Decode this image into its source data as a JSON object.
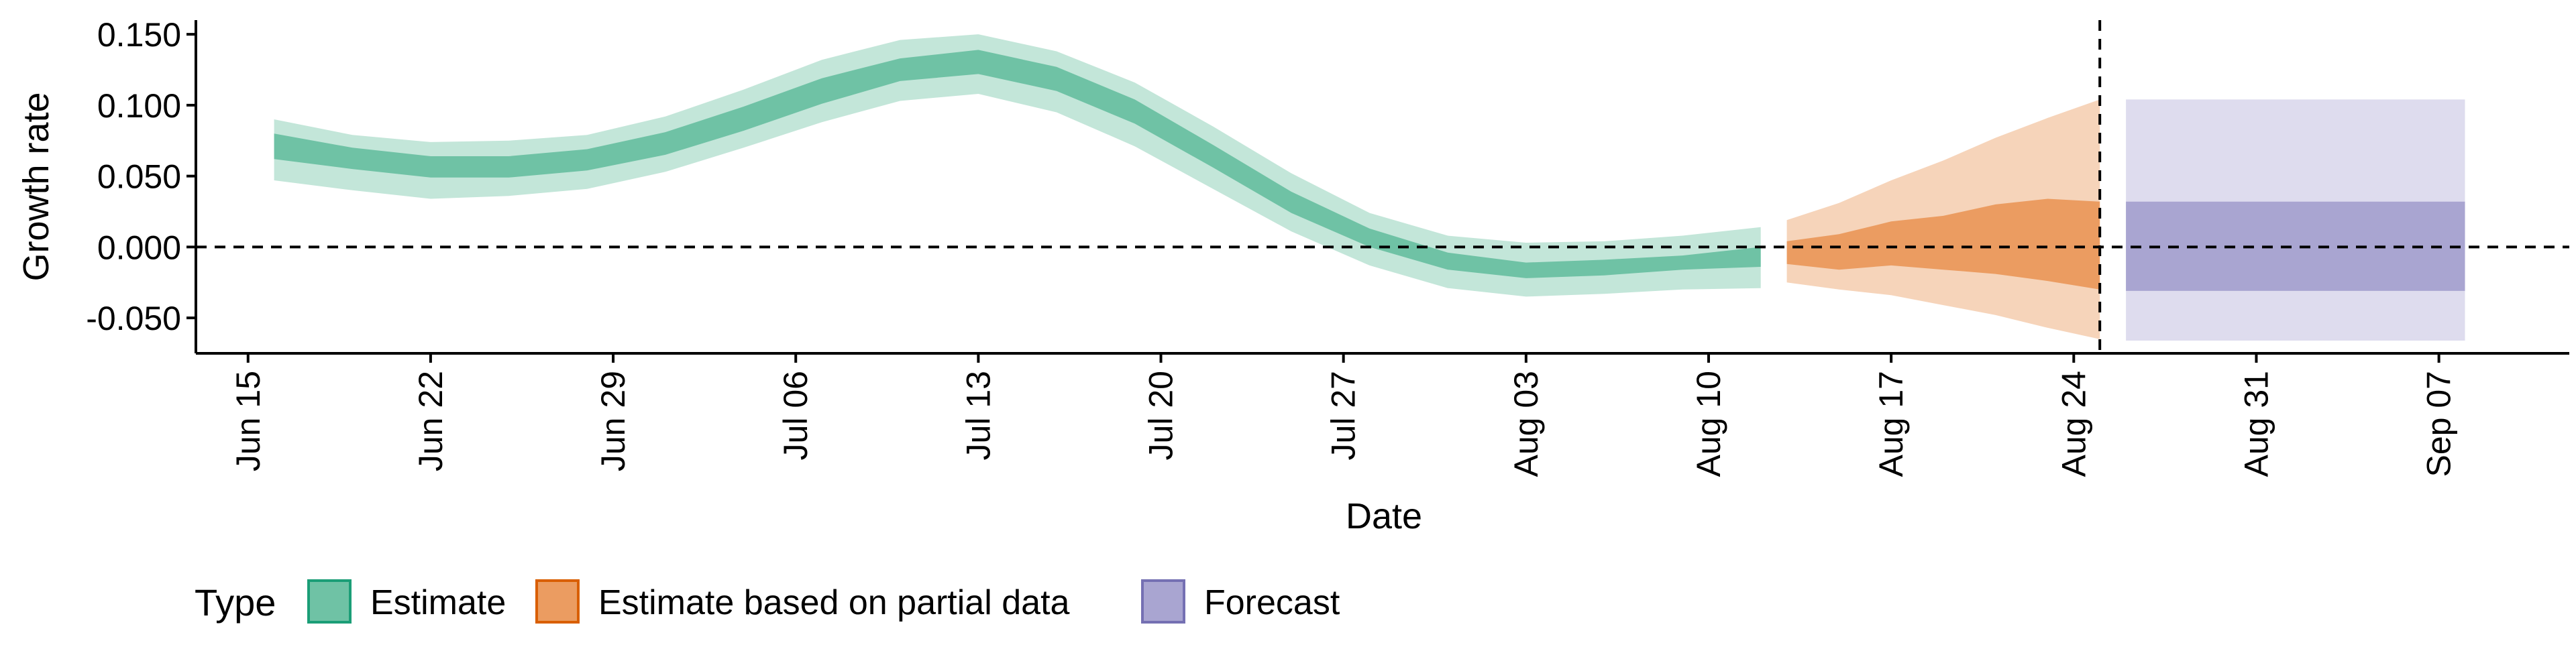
{
  "chart_data": {
    "type": "area",
    "title": "",
    "xlabel": "Date",
    "ylabel": "Growth rate",
    "x_start": "2020-06-13",
    "x_end": "2020-09-12",
    "ylim": [
      -0.075,
      0.16
    ],
    "x_ticks": [
      {
        "date": "2020-06-15",
        "label": "Jun 15"
      },
      {
        "date": "2020-06-22",
        "label": "Jun 22"
      },
      {
        "date": "2020-06-29",
        "label": "Jun 29"
      },
      {
        "date": "2020-07-06",
        "label": "Jul 06"
      },
      {
        "date": "2020-07-13",
        "label": "Jul 13"
      },
      {
        "date": "2020-07-20",
        "label": "Jul 20"
      },
      {
        "date": "2020-07-27",
        "label": "Jul 27"
      },
      {
        "date": "2020-08-03",
        "label": "Aug 03"
      },
      {
        "date": "2020-08-10",
        "label": "Aug 10"
      },
      {
        "date": "2020-08-17",
        "label": "Aug 17"
      },
      {
        "date": "2020-08-24",
        "label": "Aug 24"
      },
      {
        "date": "2020-08-31",
        "label": "Aug 31"
      },
      {
        "date": "2020-09-07",
        "label": "Sep 07"
      }
    ],
    "y_ticks": [
      {
        "value": -0.05,
        "label": "-0.050"
      },
      {
        "value": 0.0,
        "label": "0.000"
      },
      {
        "value": 0.05,
        "label": "0.050"
      },
      {
        "value": 0.1,
        "label": "0.100"
      },
      {
        "value": 0.15,
        "label": "0.150"
      }
    ],
    "reference_lines": {
      "hline_y": 0.0,
      "vline_date": "2020-08-25"
    },
    "grid": false,
    "legend": {
      "title": "Type",
      "position": "bottom-left",
      "entries": [
        {
          "label": "Estimate",
          "fill": "#6FC2A5",
          "stroke": "#1B9E77"
        },
        {
          "label": "Estimate based on partial data",
          "fill": "#EB9C61",
          "stroke": "#D95F02"
        },
        {
          "label": "Forecast",
          "fill": "#A9A5D1",
          "stroke": "#7570B3"
        }
      ]
    },
    "series": [
      {
        "name": "Estimate",
        "dates": [
          "2020-06-16",
          "2020-06-19",
          "2020-06-22",
          "2020-06-25",
          "2020-06-28",
          "2020-07-01",
          "2020-07-04",
          "2020-07-07",
          "2020-07-10",
          "2020-07-13",
          "2020-07-16",
          "2020-07-19",
          "2020-07-22",
          "2020-07-25",
          "2020-07-28",
          "2020-07-31",
          "2020-08-03",
          "2020-08-06",
          "2020-08-09",
          "2020-08-12"
        ],
        "inner_lower": [
          0.062,
          0.055,
          0.049,
          0.049,
          0.054,
          0.065,
          0.082,
          0.101,
          0.117,
          0.122,
          0.11,
          0.087,
          0.056,
          0.024,
          0.0,
          -0.016,
          -0.022,
          -0.02,
          -0.016,
          -0.014
        ],
        "inner_upper": [
          0.08,
          0.07,
          0.064,
          0.064,
          0.069,
          0.081,
          0.099,
          0.119,
          0.133,
          0.139,
          0.127,
          0.104,
          0.072,
          0.039,
          0.013,
          -0.004,
          -0.011,
          -0.009,
          -0.006,
          0.0
        ],
        "outer_lower": [
          0.047,
          0.04,
          0.034,
          0.036,
          0.041,
          0.053,
          0.07,
          0.088,
          0.103,
          0.108,
          0.095,
          0.071,
          0.041,
          0.011,
          -0.013,
          -0.029,
          -0.035,
          -0.033,
          -0.03,
          -0.029
        ],
        "outer_upper": [
          0.09,
          0.079,
          0.074,
          0.075,
          0.079,
          0.092,
          0.111,
          0.132,
          0.146,
          0.15,
          0.138,
          0.116,
          0.085,
          0.052,
          0.024,
          0.008,
          0.003,
          0.004,
          0.008,
          0.014
        ]
      },
      {
        "name": "Estimate based on partial data",
        "dates": [
          "2020-08-13",
          "2020-08-15",
          "2020-08-17",
          "2020-08-19",
          "2020-08-21",
          "2020-08-23",
          "2020-08-25"
        ],
        "inner_lower": [
          -0.012,
          -0.016,
          -0.013,
          -0.016,
          -0.019,
          -0.024,
          -0.03
        ],
        "inner_upper": [
          0.004,
          0.009,
          0.018,
          0.022,
          0.03,
          0.034,
          0.032
        ],
        "outer_lower": [
          -0.025,
          -0.03,
          -0.034,
          -0.041,
          -0.048,
          -0.057,
          -0.065
        ],
        "outer_upper": [
          0.019,
          0.031,
          0.047,
          0.061,
          0.077,
          0.091,
          0.104
        ]
      },
      {
        "name": "Forecast",
        "dates": [
          "2020-08-26",
          "2020-09-08"
        ],
        "inner_lower": [
          -0.031,
          -0.031
        ],
        "inner_upper": [
          0.032,
          0.032
        ],
        "outer_lower": [
          -0.066,
          -0.066
        ],
        "outer_upper": [
          0.104,
          0.104
        ]
      }
    ]
  },
  "colors": {
    "estimate_inner": "#6FC2A5",
    "estimate_outer": "#C3E6D9",
    "partial_inner": "#EB9C61",
    "partial_outer": "#F6D4BA",
    "forecast_inner": "#A9A5D1",
    "forecast_outer": "#DEDCEE",
    "axis": "#000000",
    "reference_line": "#000000"
  }
}
